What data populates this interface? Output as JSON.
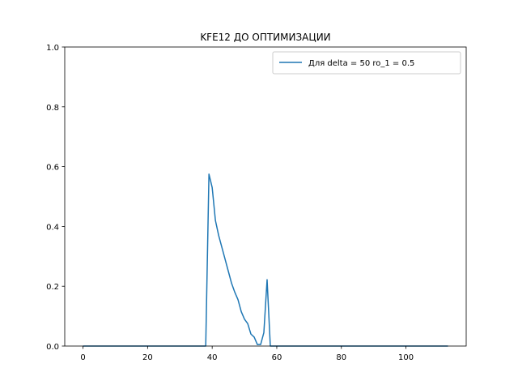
{
  "chart_data": {
    "type": "line",
    "title": "KFE12 ДО ОПТИМИЗАЦИИ",
    "xlabel": "",
    "ylabel": "",
    "xlim": [
      -5.65,
      118.65
    ],
    "ylim": [
      0,
      1
    ],
    "xticks": [
      0,
      20,
      40,
      60,
      80,
      100
    ],
    "yticks": [
      0.0,
      0.2,
      0.4,
      0.6,
      0.8,
      1.0
    ],
    "xtick_labels": [
      "0",
      "20",
      "40",
      "60",
      "80",
      "100"
    ],
    "ytick_labels": [
      "0.0",
      "0.2",
      "0.4",
      "0.6",
      "0.8",
      "1.0"
    ],
    "grid": false,
    "legend_position": "top-right",
    "series": [
      {
        "name": "Для delta = 50 ro_1 = 0.5",
        "color": "#1f77b4",
        "x": [
          0,
          10,
          20,
          30,
          38,
          39,
          40,
          41,
          42,
          43,
          44,
          45,
          46,
          47,
          48,
          49,
          50,
          51,
          52,
          53,
          54,
          55,
          56,
          57,
          58,
          60,
          80,
          100,
          113
        ],
        "y": [
          0,
          0,
          0,
          0,
          0,
          0.575,
          0.53,
          0.42,
          0.37,
          0.33,
          0.29,
          0.25,
          0.21,
          0.18,
          0.155,
          0.115,
          0.09,
          0.075,
          0.04,
          0.03,
          0.005,
          0.005,
          0.045,
          0.222,
          0,
          0,
          0,
          0,
          0
        ]
      }
    ]
  }
}
